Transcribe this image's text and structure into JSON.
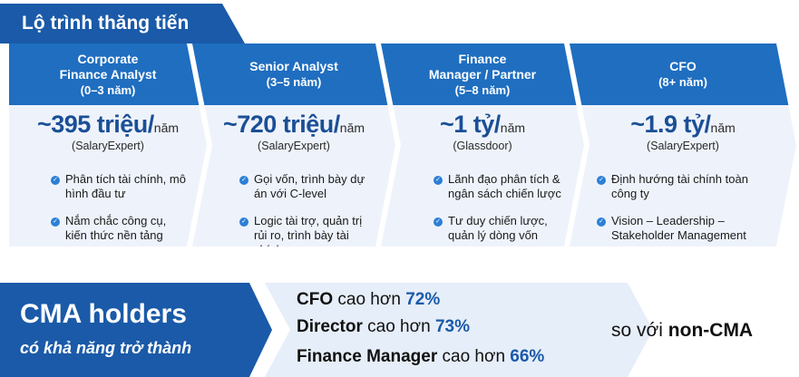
{
  "title": "Lộ trình thăng tiến",
  "stages": [
    {
      "role_line1": "Corporate",
      "role_line2": "Finance Analyst",
      "years": "(0–3 năm)",
      "salary_amount": "~395 triệu/",
      "salary_unit": "năm",
      "source": "(SalaryExpert)",
      "bullets": [
        "Phân tích tài chính, mô hình đầu tư",
        "Nắm chắc công cụ, kiến thức nền tảng"
      ]
    },
    {
      "role_line1": "Senior Analyst",
      "role_line2": "",
      "years": "(3–5 năm)",
      "salary_amount": "~720 triệu/",
      "salary_unit": "năm",
      "source": "(SalaryExpert)",
      "bullets": [
        "Gọi vốn, trình bày dự án với C-level",
        "Logic tài trợ, quản trị rủi ro, trình bày tài chính"
      ]
    },
    {
      "role_line1": "Finance",
      "role_line2": "Manager / Partner",
      "years": "(5–8 năm)",
      "salary_amount": "~1 tỷ/",
      "salary_unit": "năm",
      "source": "(Glassdoor)",
      "bullets": [
        "Lãnh đạo phân tích & ngân sách chiến lược",
        "Tư duy chiến lược, quản lý dòng vốn"
      ]
    },
    {
      "role_line1": "CFO",
      "role_line2": "",
      "years": "(8+ năm)",
      "salary_amount": "~1.9 tỷ/",
      "salary_unit": "năm",
      "source": "(SalaryExpert)",
      "bullets": [
        "Định hướng tài chính toàn công ty",
        "Vision – Leadership – Stakeholder Management"
      ]
    }
  ],
  "cma": {
    "title": "CMA holders",
    "subtitle": "có khả năng trở thành",
    "comparisons": [
      {
        "role": "CFO",
        "text": "cao hơn",
        "pct": "72%"
      },
      {
        "role": "Director",
        "text": "cao hơn",
        "pct": "73%"
      },
      {
        "role": "Finance Manager",
        "text": "cao hơn",
        "pct": "66%"
      }
    ],
    "vs_text": "so với",
    "vs_bold": "non-CMA"
  }
}
